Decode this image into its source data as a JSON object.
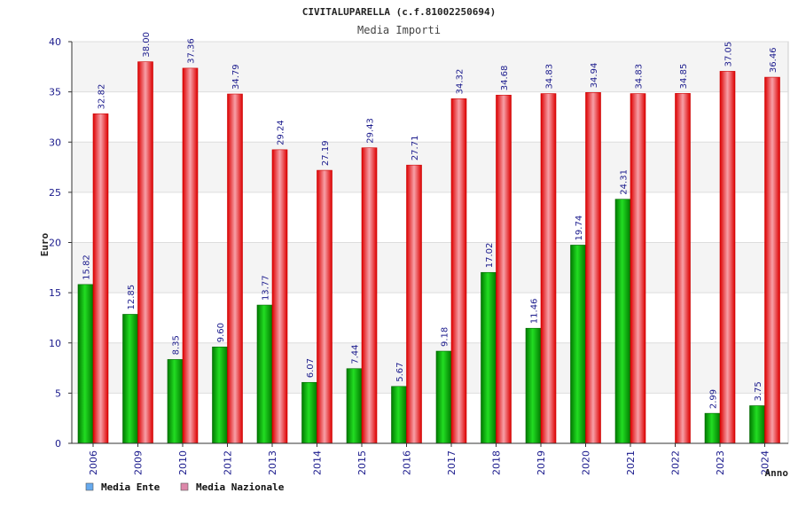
{
  "chart_data": {
    "type": "bar",
    "title": "CIVITALUPARELLA (c.f.81002250694)",
    "subtitle": "Media Importi",
    "xlabel": "Anno",
    "ylabel": "Euro",
    "ylim": [
      0,
      40
    ],
    "yticks": [
      0,
      5,
      10,
      15,
      20,
      25,
      30,
      35,
      40
    ],
    "grid": true,
    "legend_position": "bottom-left",
    "categories": [
      "2006",
      "2009",
      "2010",
      "2012",
      "2013",
      "2014",
      "2015",
      "2016",
      "2017",
      "2018",
      "2019",
      "2020",
      "2021",
      "2022",
      "2023",
      "2024"
    ],
    "series": [
      {
        "name": "Media Ente",
        "color": "#00bb00",
        "legend_color": "#66aaee",
        "values": [
          15.82,
          12.85,
          8.35,
          9.6,
          13.77,
          6.07,
          7.44,
          5.67,
          9.18,
          17.02,
          11.46,
          19.74,
          24.31,
          null,
          2.99,
          3.75
        ],
        "labels": [
          "15.82",
          "12.85",
          "8.35",
          "9.60",
          "13.77",
          "6.07",
          "7.44",
          "5.67",
          "9.18",
          "17.02",
          "11.46",
          "19.74",
          "24.31",
          "",
          "2.99",
          "3.75"
        ]
      },
      {
        "name": "Media Nazionale",
        "color": "#ee1111",
        "legend_color": "#dd88aa",
        "values": [
          32.82,
          38.0,
          37.36,
          34.79,
          29.24,
          27.19,
          29.43,
          27.71,
          34.32,
          34.68,
          34.83,
          34.94,
          34.83,
          34.85,
          37.05,
          36.46
        ],
        "labels": [
          "32.82",
          "38.00",
          "37.36",
          "34.79",
          "29.24",
          "27.19",
          "29.43",
          "27.71",
          "34.32",
          "34.68",
          "34.83",
          "34.94",
          "34.83",
          "34.85",
          "37.05",
          "36.46"
        ]
      }
    ]
  }
}
